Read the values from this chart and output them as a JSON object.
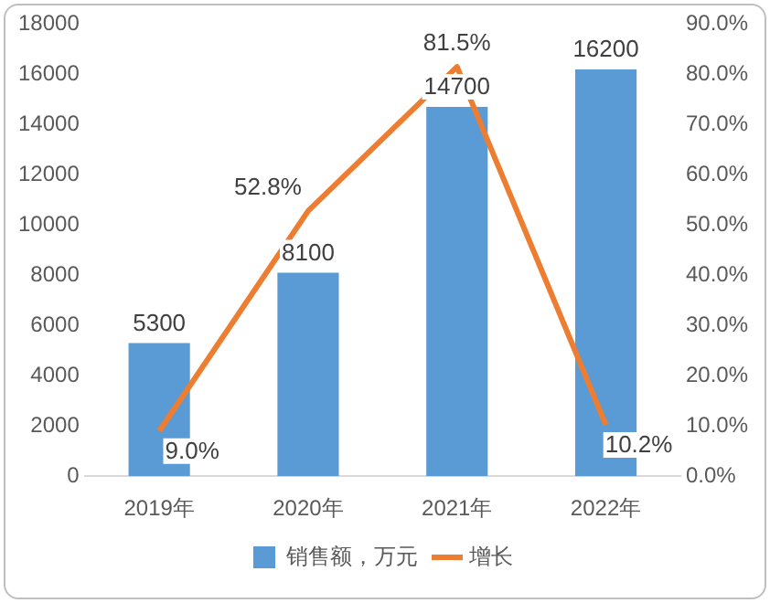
{
  "chart_data": {
    "type": "bar",
    "categories": [
      "2019年",
      "2020年",
      "2021年",
      "2022年"
    ],
    "series": [
      {
        "name": "销售额，万元",
        "color": "#5b9bd5",
        "values": [
          5300,
          8100,
          14700,
          16200
        ],
        "value_labels": [
          "5300",
          "8100",
          "14700",
          "16200"
        ]
      },
      {
        "name": "增长",
        "type": "line",
        "axis": "y2",
        "color": "#ed7d31",
        "values": [
          9.0,
          52.8,
          81.5,
          10.2
        ],
        "value_labels": [
          "9.0%",
          "52.8%",
          "81.5%",
          "10.2%"
        ],
        "marker": "none"
      }
    ],
    "ylim": [
      0,
      18000
    ],
    "yticks": [
      0,
      2000,
      4000,
      6000,
      8000,
      10000,
      12000,
      14000,
      16000,
      18000
    ],
    "y2lim": [
      0,
      90
    ],
    "y2ticks": [
      {
        "value": 0,
        "label": "0.0%"
      },
      {
        "value": 10,
        "label": "10.0%"
      },
      {
        "value": 20,
        "label": "20.0%"
      },
      {
        "value": 30,
        "label": "30.0%"
      },
      {
        "value": 40,
        "label": "40.0%"
      },
      {
        "value": 50,
        "label": "50.0%"
      },
      {
        "value": 60,
        "label": "60.0%"
      },
      {
        "value": 70,
        "label": "70.0%"
      },
      {
        "value": 80,
        "label": "80.0%"
      },
      {
        "value": 90,
        "label": "90.0%"
      }
    ],
    "grid": false,
    "legend": "bottom"
  }
}
